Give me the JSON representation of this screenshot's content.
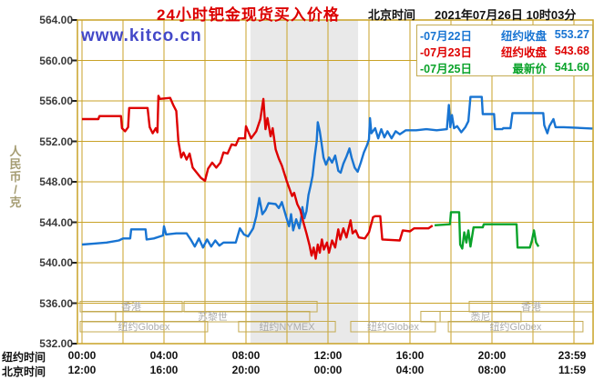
{
  "header": {
    "title": "24小时钯金现货买入价格",
    "beijing_time_label": "北京时间",
    "datetime": "2021年07月26日 10时03分"
  },
  "watermark": "www.kitco.cn",
  "y_unit_label": "人民币/克",
  "axis_row_labels": {
    "ny": "纽约时间",
    "beijing": "北京时间"
  },
  "colors": {
    "title": "#dc0000",
    "grid": "#c9a227",
    "session_border": "#c4ab52",
    "session_text": "#acacac",
    "band": "#e9e9e9",
    "watermark": "#4348c8",
    "blue": "#1874d2",
    "red": "#de0000",
    "green": "#0aa32a",
    "tick_text": "#3a3a3a"
  },
  "chart_data": {
    "type": "line",
    "title": "24小时钯金现货买入价格",
    "ylabel": "人民币/克",
    "ylim": [
      532,
      564
    ],
    "ytick_step": 4,
    "yticks": [
      "564.00",
      "560.00",
      "556.00",
      "552.00",
      "548.00",
      "544.00",
      "540.00",
      "536.00",
      "532.00"
    ],
    "xlabel": "New York time (hours 00:00-23:59)",
    "xlim_hours": [
      0,
      24
    ],
    "xticks_hours": [
      0,
      4,
      8,
      12,
      16,
      20,
      23.98
    ],
    "xticks": {
      "ny": [
        "00:00",
        "04:00",
        "08:00",
        "12:00",
        "16:00",
        "20:00",
        "23:59"
      ],
      "beijing": [
        "12:00",
        "16:00",
        "20:00",
        "00:00",
        "04:00",
        "08:00",
        "11:59"
      ]
    },
    "grid": true,
    "legend_position": "top-right",
    "highlight_band_hours": [
      8.22,
      13.47
    ],
    "series": [
      {
        "name": "07月22日 纽约收盘",
        "legend_dash": "-",
        "legend_date": "07月22日",
        "legend_label": "纽约收盘",
        "legend_value": "553.27",
        "close_value": 553.27,
        "color_key": "blue",
        "points": [
          [
            0,
            541.8
          ],
          [
            0.6,
            541.9
          ],
          [
            1.2,
            542.0
          ],
          [
            1.8,
            542.2
          ],
          [
            2.0,
            542.4
          ],
          [
            2.35,
            542.4
          ],
          [
            2.4,
            543.3
          ],
          [
            3.1,
            543.3
          ],
          [
            3.15,
            542.3
          ],
          [
            3.5,
            542.4
          ],
          [
            3.8,
            542.6
          ],
          [
            3.95,
            542.7
          ],
          [
            4.0,
            543.6
          ],
          [
            4.1,
            542.8
          ],
          [
            4.6,
            542.9
          ],
          [
            5.1,
            542.9
          ],
          [
            5.3,
            542.3
          ],
          [
            5.5,
            541.6
          ],
          [
            5.7,
            542.4
          ],
          [
            5.9,
            541.5
          ],
          [
            6.1,
            542.3
          ],
          [
            6.3,
            541.6
          ],
          [
            6.5,
            542.2
          ],
          [
            6.7,
            541.7
          ],
          [
            6.9,
            542.0
          ],
          [
            7.5,
            542.0
          ],
          [
            7.7,
            543.4
          ],
          [
            7.9,
            542.8
          ],
          [
            8.1,
            542.6
          ],
          [
            8.35,
            543.4
          ],
          [
            8.5,
            544.6
          ],
          [
            8.65,
            546.4
          ],
          [
            8.8,
            544.8
          ],
          [
            8.95,
            545.2
          ],
          [
            9.1,
            545.9
          ],
          [
            9.45,
            545.8
          ],
          [
            9.6,
            545.4
          ],
          [
            9.75,
            546.0
          ],
          [
            9.95,
            544.6
          ],
          [
            10.1,
            543.6
          ],
          [
            10.2,
            544.8
          ],
          [
            10.3,
            543.2
          ],
          [
            10.45,
            544.3
          ],
          [
            10.6,
            543.4
          ],
          [
            10.7,
            544.6
          ],
          [
            10.75,
            545.5
          ],
          [
            10.85,
            544.4
          ],
          [
            10.95,
            545.1
          ],
          [
            11.05,
            546.7
          ],
          [
            11.15,
            547.6
          ],
          [
            11.25,
            548.6
          ],
          [
            11.35,
            550.5
          ],
          [
            11.45,
            552.0
          ],
          [
            11.5,
            553.9
          ],
          [
            11.6,
            553.0
          ],
          [
            11.68,
            551.9
          ],
          [
            11.78,
            550.4
          ],
          [
            11.9,
            549.7
          ],
          [
            12.05,
            550.4
          ],
          [
            12.2,
            549.9
          ],
          [
            12.35,
            550.6
          ],
          [
            12.5,
            549.1
          ],
          [
            12.62,
            548.9
          ],
          [
            12.75,
            549.8
          ],
          [
            12.9,
            550.5
          ],
          [
            13.05,
            551.3
          ],
          [
            13.15,
            550.4
          ],
          [
            13.3,
            549.4
          ],
          [
            13.45,
            549.0
          ],
          [
            13.6,
            549.9
          ],
          [
            13.75,
            550.9
          ],
          [
            13.9,
            551.6
          ],
          [
            14.0,
            552.2
          ],
          [
            14.05,
            554.3
          ],
          [
            14.12,
            552.8
          ],
          [
            14.3,
            553.3
          ],
          [
            14.45,
            552.3
          ],
          [
            14.6,
            553.2
          ],
          [
            14.75,
            552.4
          ],
          [
            14.9,
            553.0
          ],
          [
            15.1,
            552.3
          ],
          [
            15.3,
            553.0
          ],
          [
            15.5,
            552.7
          ],
          [
            15.8,
            553.1
          ],
          [
            16.3,
            553.1
          ],
          [
            16.8,
            553.2
          ],
          [
            17.3,
            553.1
          ],
          [
            17.8,
            553.2
          ],
          [
            17.9,
            555.6
          ],
          [
            17.97,
            553.4
          ],
          [
            18.05,
            554.6
          ],
          [
            18.15,
            553.3
          ],
          [
            18.3,
            553.5
          ],
          [
            18.5,
            552.9
          ],
          [
            18.7,
            553.4
          ],
          [
            18.85,
            554.0
          ],
          [
            18.95,
            556.4
          ],
          [
            19.5,
            556.4
          ],
          [
            19.55,
            554.7
          ],
          [
            20.1,
            554.7
          ],
          [
            20.15,
            553.2
          ],
          [
            20.5,
            553.2
          ],
          [
            20.55,
            553.3
          ],
          [
            20.9,
            553.3
          ],
          [
            21.0,
            554.8
          ],
          [
            22.5,
            554.8
          ],
          [
            22.55,
            553.6
          ],
          [
            22.7,
            552.8
          ],
          [
            22.8,
            553.5
          ],
          [
            23.0,
            554.2
          ],
          [
            23.1,
            553.4
          ],
          [
            23.5,
            553.4
          ],
          [
            24.9,
            553.27
          ]
        ]
      },
      {
        "name": "07月23日 纽约收盘",
        "legend_dash": "-",
        "legend_date": "07月23日",
        "legend_label": "纽约收盘",
        "legend_value": "543.68",
        "close_value": 543.68,
        "color_key": "red",
        "points": [
          [
            0,
            554.2
          ],
          [
            0.8,
            554.2
          ],
          [
            0.85,
            554.5
          ],
          [
            1.9,
            554.5
          ],
          [
            1.95,
            553.3
          ],
          [
            2.1,
            553.0
          ],
          [
            2.25,
            553.4
          ],
          [
            2.3,
            555.3
          ],
          [
            3.2,
            555.3
          ],
          [
            3.3,
            553.4
          ],
          [
            3.45,
            552.8
          ],
          [
            3.6,
            553.3
          ],
          [
            3.68,
            552.9
          ],
          [
            3.73,
            556.5
          ],
          [
            3.8,
            556.2
          ],
          [
            4.3,
            556.3
          ],
          [
            4.45,
            555.6
          ],
          [
            4.6,
            555.0
          ],
          [
            4.7,
            552.0
          ],
          [
            4.84,
            550.4
          ],
          [
            4.95,
            550.9
          ],
          [
            5.1,
            550.2
          ],
          [
            5.25,
            550.8
          ],
          [
            5.4,
            549.4
          ],
          [
            5.6,
            548.9
          ],
          [
            5.8,
            548.4
          ],
          [
            6.0,
            548.1
          ],
          [
            6.15,
            549.3
          ],
          [
            6.35,
            549.9
          ],
          [
            6.55,
            549.4
          ],
          [
            6.75,
            549.9
          ],
          [
            6.9,
            550.9
          ],
          [
            7.1,
            550.8
          ],
          [
            7.3,
            551.7
          ],
          [
            7.5,
            551.6
          ],
          [
            7.65,
            552.3
          ],
          [
            7.95,
            552.3
          ],
          [
            8.0,
            553.5
          ],
          [
            8.25,
            552.3
          ],
          [
            8.5,
            553.0
          ],
          [
            8.7,
            554.2
          ],
          [
            8.85,
            556.2
          ],
          [
            8.95,
            553.2
          ],
          [
            9.05,
            554.3
          ],
          [
            9.2,
            552.5
          ],
          [
            9.3,
            553.3
          ],
          [
            9.45,
            551.2
          ],
          [
            9.6,
            550.3
          ],
          [
            9.75,
            549.6
          ],
          [
            10.0,
            548.0
          ],
          [
            10.25,
            546.6
          ],
          [
            10.35,
            546.9
          ],
          [
            10.5,
            545.8
          ],
          [
            10.65,
            545.2
          ],
          [
            10.8,
            544.0
          ],
          [
            10.95,
            542.9
          ],
          [
            11.1,
            541.7
          ],
          [
            11.2,
            540.7
          ],
          [
            11.3,
            541.5
          ],
          [
            11.4,
            540.4
          ],
          [
            11.5,
            541.8
          ],
          [
            11.6,
            541.0
          ],
          [
            11.7,
            542.3
          ],
          [
            11.8,
            541.3
          ],
          [
            11.95,
            542.0
          ],
          [
            12.05,
            541.0
          ],
          [
            12.2,
            542.2
          ],
          [
            12.35,
            541.5
          ],
          [
            12.5,
            543.3
          ],
          [
            12.6,
            542.3
          ],
          [
            12.75,
            543.4
          ],
          [
            12.9,
            542.5
          ],
          [
            13.1,
            544.2
          ],
          [
            13.2,
            542.9
          ],
          [
            13.35,
            543.2
          ],
          [
            13.5,
            542.5
          ],
          [
            13.8,
            542.4
          ],
          [
            14.0,
            543.0
          ],
          [
            14.2,
            544.5
          ],
          [
            14.3,
            544.6
          ],
          [
            14.55,
            544.6
          ],
          [
            14.65,
            542.3
          ],
          [
            15.5,
            542.2
          ],
          [
            15.65,
            543.2
          ],
          [
            16.0,
            543.1
          ],
          [
            16.2,
            543.4
          ],
          [
            16.9,
            543.4
          ],
          [
            17.1,
            543.68
          ]
        ]
      },
      {
        "name": "07月25日 最新价",
        "legend_dash": "-",
        "legend_date": "07月25日",
        "legend_label": "最新价",
        "legend_value": "541.60",
        "close_value": 541.6,
        "color_key": "green",
        "points": [
          [
            17.2,
            543.7
          ],
          [
            17.95,
            543.8
          ],
          [
            18.0,
            545.0
          ],
          [
            18.4,
            545.0
          ],
          [
            18.45,
            541.8
          ],
          [
            18.55,
            541.4
          ],
          [
            18.65,
            543.0
          ],
          [
            18.75,
            542.0
          ],
          [
            18.85,
            543.2
          ],
          [
            18.95,
            541.6
          ],
          [
            19.1,
            543.5
          ],
          [
            19.55,
            543.5
          ],
          [
            19.6,
            543.8
          ],
          [
            21.2,
            543.8
          ],
          [
            21.25,
            541.5
          ],
          [
            21.85,
            541.5
          ],
          [
            21.95,
            542.2
          ],
          [
            22.05,
            543.2
          ],
          [
            22.15,
            542.0
          ],
          [
            22.27,
            541.6
          ]
        ]
      }
    ],
    "sessions": [
      {
        "row": 1,
        "label": "香港",
        "start": -0.09,
        "end": 4.89
      },
      {
        "row": 1,
        "label": "",
        "start": 4.98,
        "end": 11.47
      },
      {
        "row": 1,
        "label": "香港",
        "start": 18.89,
        "end": 24.93
      },
      {
        "row": 2,
        "label": "",
        "start": 0.0,
        "end": 1.64
      },
      {
        "row": 2,
        "label": "苏黎世",
        "start": 1.64,
        "end": 11.11
      },
      {
        "row": 2,
        "label": "",
        "start": 16.53,
        "end": 17.47
      },
      {
        "row": 2,
        "label": "悉尼",
        "start": 17.47,
        "end": 21.42
      },
      {
        "row": 3,
        "label": "纽约Globex",
        "start": -0.09,
        "end": 6.13
      },
      {
        "row": 3,
        "label": "纽约NYMEX",
        "start": 7.64,
        "end": 12.36
      },
      {
        "row": 3,
        "label": "纽约Globex",
        "start": 13.11,
        "end": 17.24
      },
      {
        "row": 3,
        "label": "纽约Globex",
        "start": 17.87,
        "end": 24.44
      }
    ]
  }
}
